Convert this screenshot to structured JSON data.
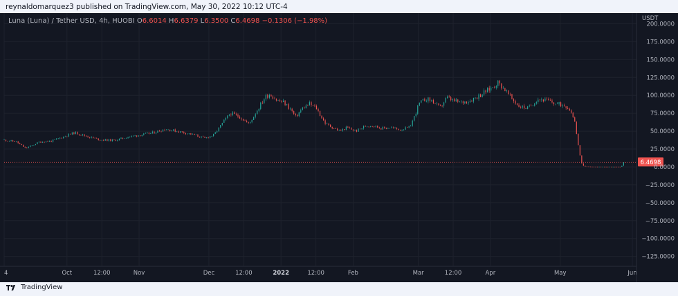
{
  "caption": "reynaldomarquez3 published on TradingView.com, May 30, 2022 10:12 UTC-4",
  "footer_brand": "TradingView",
  "legend": {
    "symbol": "Luna  (Luna)  / Tether USD, 4h, HUOBI",
    "open_label": "O",
    "open": "6.6014",
    "high_label": "H",
    "high": "6.6379",
    "low_label": "L",
    "low": "6.3500",
    "close_label": "C",
    "close": "6.4698",
    "change": "−0.1306 (−1.98%)"
  },
  "colors": {
    "background": "#131722",
    "up": "#26a69a",
    "down": "#ef5350",
    "grid": "#1e222d",
    "axis_text": "#b2b5be",
    "price_line": "#ef5350"
  },
  "chart_data": {
    "type": "candlestick",
    "currency": "USDT",
    "y_ticks": [
      200,
      175,
      150,
      125,
      100,
      75,
      50,
      25,
      0,
      -25,
      -50,
      -75,
      -100,
      -125
    ],
    "y_tick_labels": [
      "200.0000",
      "175.0000",
      "150.0000",
      "125.0000",
      "100.0000",
      "75.0000",
      "50.0000",
      "25.0000",
      "0.0000",
      "−25.0000",
      "−50.0000",
      "−75.0000",
      "−100.0000",
      "−125.0000"
    ],
    "ylim": [
      -135,
      212
    ],
    "x_labels": [
      "4",
      "Oct",
      "12:00",
      "Nov",
      "Dec",
      "12:00",
      "2022",
      "12:00",
      "Feb",
      "Mar",
      "12:00",
      "Apr",
      "May",
      "Jun"
    ],
    "last_price": 6.4698,
    "last_price_label": "6.4698",
    "price_path": [
      [
        "2021-09-04",
        38
      ],
      [
        "2021-09-10",
        35
      ],
      [
        "2021-09-14",
        26
      ],
      [
        "2021-09-20",
        35
      ],
      [
        "2021-09-25",
        36
      ],
      [
        "2021-10-01",
        43
      ],
      [
        "2021-10-05",
        48
      ],
      [
        "2021-10-10",
        43
      ],
      [
        "2021-10-16",
        38
      ],
      [
        "2021-10-22",
        37
      ],
      [
        "2021-10-28",
        42
      ],
      [
        "2021-11-03",
        45
      ],
      [
        "2021-11-08",
        48
      ],
      [
        "2021-11-13",
        53
      ],
      [
        "2021-11-18",
        50
      ],
      [
        "2021-11-24",
        46
      ],
      [
        "2021-11-30",
        40
      ],
      [
        "2021-12-04",
        45
      ],
      [
        "2021-12-08",
        63
      ],
      [
        "2021-12-11",
        75
      ],
      [
        "2021-12-15",
        70
      ],
      [
        "2021-12-19",
        60
      ],
      [
        "2021-12-23",
        82
      ],
      [
        "2021-12-26",
        98
      ],
      [
        "2021-12-28",
        102
      ],
      [
        "2021-12-31",
        93
      ],
      [
        "2022-01-03",
        90
      ],
      [
        "2022-01-06",
        80
      ],
      [
        "2022-01-08",
        70
      ],
      [
        "2022-01-11",
        82
      ],
      [
        "2022-01-14",
        88
      ],
      [
        "2022-01-17",
        82
      ],
      [
        "2022-01-19",
        70
      ],
      [
        "2022-01-21",
        60
      ],
      [
        "2022-01-24",
        55
      ],
      [
        "2022-01-27",
        50
      ],
      [
        "2022-01-30",
        55
      ],
      [
        "2022-02-03",
        50
      ],
      [
        "2022-02-07",
        57
      ],
      [
        "2022-02-10",
        58
      ],
      [
        "2022-02-14",
        54
      ],
      [
        "2022-02-18",
        55
      ],
      [
        "2022-02-22",
        52
      ],
      [
        "2022-02-26",
        55
      ],
      [
        "2022-02-28",
        70
      ],
      [
        "2022-03-02",
        88
      ],
      [
        "2022-03-05",
        95
      ],
      [
        "2022-03-08",
        92
      ],
      [
        "2022-03-11",
        82
      ],
      [
        "2022-03-14",
        97
      ],
      [
        "2022-03-17",
        92
      ],
      [
        "2022-03-20",
        90
      ],
      [
        "2022-03-24",
        93
      ],
      [
        "2022-03-28",
        100
      ],
      [
        "2022-04-02",
        110
      ],
      [
        "2022-04-05",
        118
      ],
      [
        "2022-04-08",
        108
      ],
      [
        "2022-04-11",
        95
      ],
      [
        "2022-04-14",
        85
      ],
      [
        "2022-04-18",
        82
      ],
      [
        "2022-04-22",
        95
      ],
      [
        "2022-04-26",
        93
      ],
      [
        "2022-04-30",
        88
      ],
      [
        "2022-05-04",
        86
      ],
      [
        "2022-05-06",
        80
      ],
      [
        "2022-05-08",
        65
      ],
      [
        "2022-05-09",
        40
      ],
      [
        "2022-05-10",
        20
      ],
      [
        "2022-05-11",
        5
      ],
      [
        "2022-05-12",
        0.5
      ],
      [
        "2022-05-15",
        0.2
      ],
      [
        "2022-05-28",
        0.1
      ],
      [
        "2022-05-29",
        6.4698
      ]
    ]
  }
}
